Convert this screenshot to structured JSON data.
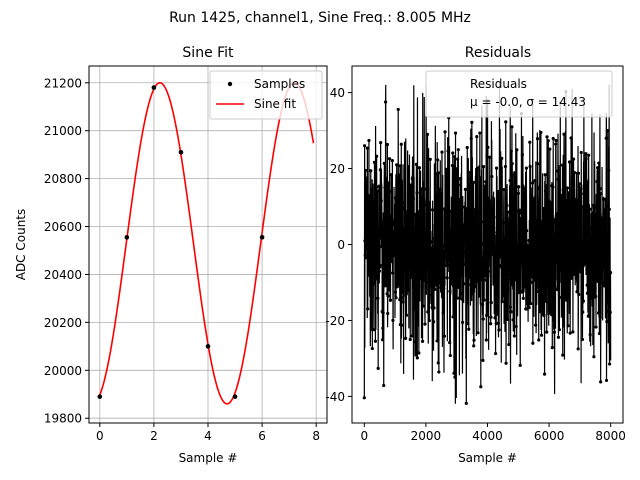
{
  "figure": {
    "suptitle": "Run 1425, channel1, Sine Freq.: 8.005 MHz"
  },
  "chart_data": [
    {
      "type": "line",
      "title": "Sine Fit",
      "xlabel": "Sample #",
      "ylabel": "ADC Counts",
      "xlim": [
        -0.4,
        8.4
      ],
      "ylim": [
        19780,
        21270
      ],
      "xticks": [
        "0",
        "2",
        "4",
        "6",
        "8"
      ],
      "yticks": [
        "19800",
        "20000",
        "20200",
        "20400",
        "20600",
        "20800",
        "21000",
        "21200"
      ],
      "grid": true,
      "legend": {
        "placement": "top-right",
        "entries": [
          "Samples",
          "Sine fit"
        ]
      },
      "series": [
        {
          "name": "Samples",
          "style": "points",
          "color": "#000000",
          "x": [
            0,
            1,
            2,
            3,
            4,
            5,
            6
          ],
          "y": [
            19890,
            20555,
            21180,
            20910,
            20100,
            19890,
            20555
          ]
        },
        {
          "name": "Sine fit",
          "style": "line",
          "color": "#ff0000",
          "model": {
            "offset": 20530,
            "amplitude": 670,
            "period": 4.97,
            "peak_x": 2.22
          },
          "x_range": [
            0,
            7.9
          ]
        }
      ]
    },
    {
      "type": "scatter",
      "title": "Residuals",
      "xlabel": "Sample #",
      "ylabel": "",
      "xlim": [
        -400,
        8400
      ],
      "ylim": [
        -47,
        47
      ],
      "xticks": [
        "0",
        "2000",
        "4000",
        "6000",
        "8000"
      ],
      "yticks": [
        "-40",
        "-20",
        "0",
        "20",
        "40"
      ],
      "grid": false,
      "legend": {
        "placement": "top-right",
        "entries": [
          "Residuals",
          "μ = -0.0, σ = 14.43"
        ]
      },
      "series": [
        {
          "name": "Residuals",
          "style": "line+points",
          "color": "#000000",
          "mean": -0.0,
          "sigma": 14.43,
          "n_points": 8000,
          "envelope_min": -43,
          "envelope_max": 43
        }
      ]
    }
  ]
}
